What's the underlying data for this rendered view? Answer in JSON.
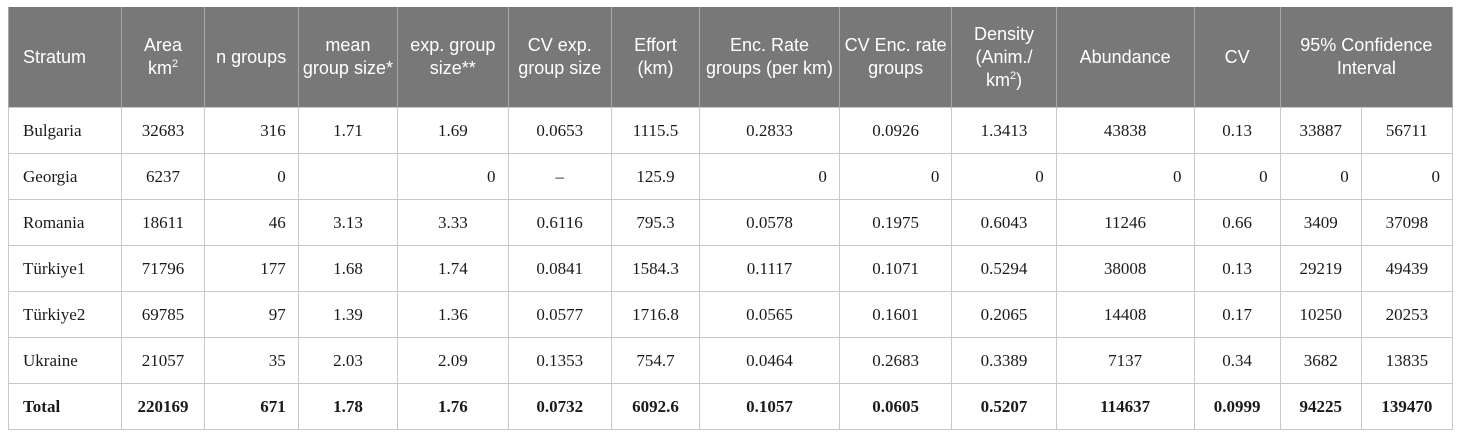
{
  "headers": {
    "stratum": "Stratum",
    "area": "Area km",
    "area_sup": "2",
    "n_groups": "n groups",
    "mean_group_size": "mean group size*",
    "exp_group_size": "exp. group size**",
    "cv_exp_group_size": "CV exp. group size",
    "effort": "Effort (km)",
    "enc_rate": "Enc. Rate groups (per km)",
    "cv_enc_rate": "CV Enc. rate groups",
    "density": "Density (Anim./ km",
    "density_sup": "2",
    "density_end": ")",
    "abundance": "Abundance",
    "cv": "CV",
    "ci": "95% Confidence Interval"
  },
  "rows": [
    {
      "stratum": "Bulgaria",
      "area": "32683",
      "n": "316",
      "mean": "1.71",
      "exp": "1.69",
      "cvexp": "0.0653",
      "effort": "1115.5",
      "enc": "0.2833",
      "cvenc": "0.0926",
      "density": "1.3413",
      "abundance": "43838",
      "cv": "0.13",
      "ci_low": "33887",
      "ci_high": "56711"
    },
    {
      "stratum": "Georgia",
      "area": "6237",
      "n": "0",
      "mean": "",
      "exp": "0",
      "cvexp": "–",
      "effort": "125.9",
      "enc": "0",
      "cvenc": "0",
      "density": "0",
      "abundance": "0",
      "cv": "0",
      "ci_low": "0",
      "ci_high": "0"
    },
    {
      "stratum": "Romania",
      "area": "18611",
      "n": "46",
      "mean": "3.13",
      "exp": "3.33",
      "cvexp": "0.6116",
      "effort": "795.3",
      "enc": "0.0578",
      "cvenc": "0.1975",
      "density": "0.6043",
      "abundance": "11246",
      "cv": "0.66",
      "ci_low": "3409",
      "ci_high": "37098"
    },
    {
      "stratum": "Türkiye1",
      "area": "71796",
      "n": "177",
      "mean": "1.68",
      "exp": "1.74",
      "cvexp": "0.0841",
      "effort": "1584.3",
      "enc": "0.1117",
      "cvenc": "0.1071",
      "density": "0.5294",
      "abundance": "38008",
      "cv": "0.13",
      "ci_low": "29219",
      "ci_high": "49439"
    },
    {
      "stratum": "Türkiye2",
      "area": "69785",
      "n": "97",
      "mean": "1.39",
      "exp": "1.36",
      "cvexp": "0.0577",
      "effort": "1716.8",
      "enc": "0.0565",
      "cvenc": "0.1601",
      "density": "0.2065",
      "abundance": "14408",
      "cv": "0.17",
      "ci_low": "10250",
      "ci_high": "20253"
    },
    {
      "stratum": "Ukraine",
      "area": "21057",
      "n": "35",
      "mean": "2.03",
      "exp": "2.09",
      "cvexp": "0.1353",
      "effort": "754.7",
      "enc": "0.0464",
      "cvenc": "0.2683",
      "density": "0.3389",
      "abundance": "7137",
      "cv": "0.34",
      "ci_low": "3682",
      "ci_high": "13835"
    }
  ],
  "total": {
    "stratum": "Total",
    "area": "220169",
    "n": "671",
    "mean": "1.78",
    "exp": "1.76",
    "cvexp": "0.0732",
    "effort": "6092.6",
    "enc": "0.1057",
    "cvenc": "0.0605",
    "density": "0.5207",
    "abundance": "114637",
    "cv": "0.0999",
    "ci_low": "94225",
    "ci_high": "139470"
  }
}
